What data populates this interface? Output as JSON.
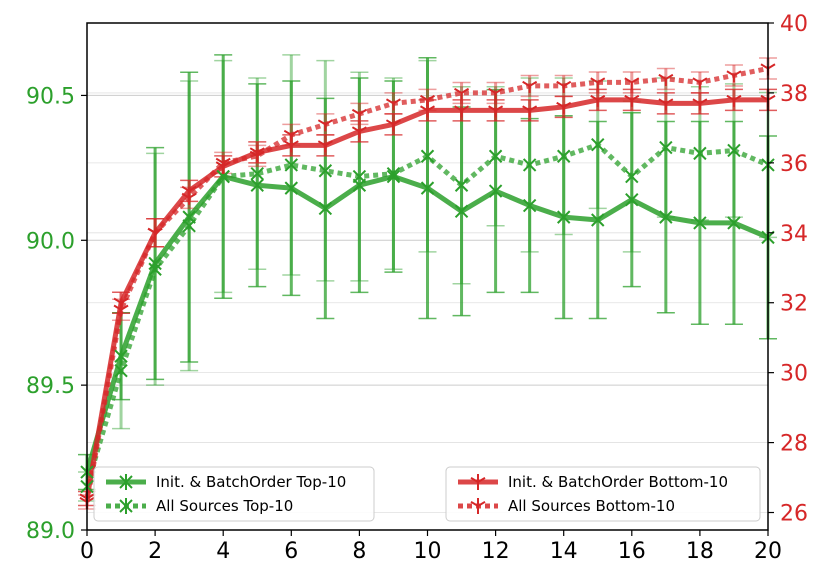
{
  "chart_data": {
    "type": "line",
    "x": [
      0,
      1,
      2,
      3,
      4,
      5,
      6,
      7,
      8,
      9,
      10,
      11,
      12,
      13,
      14,
      15,
      16,
      17,
      18,
      19,
      20
    ],
    "x_ticks": [
      0,
      2,
      4,
      6,
      8,
      10,
      12,
      14,
      16,
      18,
      20
    ],
    "xlim": [
      0,
      20
    ],
    "left_axis": {
      "ylim": [
        89.0,
        90.75
      ],
      "ticks": [
        "89.0",
        "89.5",
        "90.0",
        "90.5"
      ],
      "color": "#2ca02c"
    },
    "right_axis": {
      "ylim": [
        25.5,
        40.0
      ],
      "ticks": [
        "26",
        "28",
        "30",
        "32",
        "34",
        "36",
        "38",
        "40"
      ],
      "color": "#d62728"
    },
    "grid": "horizontal (left axis)",
    "legend_placement": "bottom",
    "series": [
      {
        "name": "Init. & BatchOrder Top-10",
        "axis": "left",
        "color": "#2ca02c",
        "style": "solid",
        "marker": "x",
        "values": [
          89.2,
          89.6,
          89.92,
          90.08,
          90.22,
          90.19,
          90.18,
          90.11,
          90.19,
          90.22,
          90.18,
          90.1,
          90.17,
          90.12,
          90.08,
          90.07,
          90.14,
          90.08,
          90.06,
          90.06,
          90.01
        ],
        "errors": [
          0.06,
          0.15,
          0.4,
          0.5,
          0.42,
          0.35,
          0.37,
          0.38,
          0.37,
          0.33,
          0.45,
          0.36,
          0.35,
          0.3,
          0.35,
          0.34,
          0.3,
          0.33,
          0.35,
          0.35,
          0.35
        ]
      },
      {
        "name": "All Sources Top-10",
        "axis": "left",
        "color": "#2ca02c",
        "style": "dotted",
        "marker": "x",
        "values": [
          89.15,
          89.55,
          89.9,
          90.05,
          90.22,
          90.23,
          90.26,
          90.24,
          90.22,
          90.23,
          90.29,
          90.19,
          90.29,
          90.26,
          90.29,
          90.33,
          90.22,
          90.32,
          90.3,
          90.31,
          90.26
        ],
        "errors": [
          0.05,
          0.2,
          0.4,
          0.5,
          0.4,
          0.33,
          0.38,
          0.38,
          0.36,
          0.33,
          0.33,
          0.34,
          0.24,
          0.3,
          0.27,
          0.22,
          0.26,
          0.24,
          0.23,
          0.23,
          0.25
        ]
      },
      {
        "name": "Init. & BatchOrder Bottom-10",
        "axis": "right",
        "color": "#d62728",
        "style": "solid",
        "marker": "tri_down",
        "values": [
          26.4,
          32.0,
          34.0,
          35.2,
          35.9,
          36.3,
          36.5,
          36.5,
          36.9,
          37.1,
          37.5,
          37.5,
          37.5,
          37.5,
          37.6,
          37.8,
          37.8,
          37.7,
          37.7,
          37.8,
          37.8
        ],
        "errors": [
          0.2,
          0.3,
          0.4,
          0.3,
          0.3,
          0.3,
          0.3,
          0.3,
          0.3,
          0.3,
          0.3,
          0.3,
          0.3,
          0.3,
          0.3,
          0.3,
          0.3,
          0.3,
          0.3,
          0.3,
          0.3
        ]
      },
      {
        "name": "All Sources Bottom-10",
        "axis": "right",
        "color": "#d62728",
        "style": "dotted",
        "marker": "tri_down",
        "values": [
          26.3,
          31.8,
          34.0,
          35.0,
          36.0,
          36.2,
          36.8,
          37.1,
          37.4,
          37.7,
          37.8,
          38.0,
          38.0,
          38.2,
          38.2,
          38.3,
          38.3,
          38.4,
          38.3,
          38.5,
          38.7
        ],
        "errors": [
          0.2,
          0.3,
          0.4,
          0.3,
          0.3,
          0.3,
          0.3,
          0.3,
          0.3,
          0.3,
          0.3,
          0.3,
          0.3,
          0.3,
          0.3,
          0.3,
          0.3,
          0.3,
          0.3,
          0.3,
          0.3
        ]
      }
    ]
  }
}
